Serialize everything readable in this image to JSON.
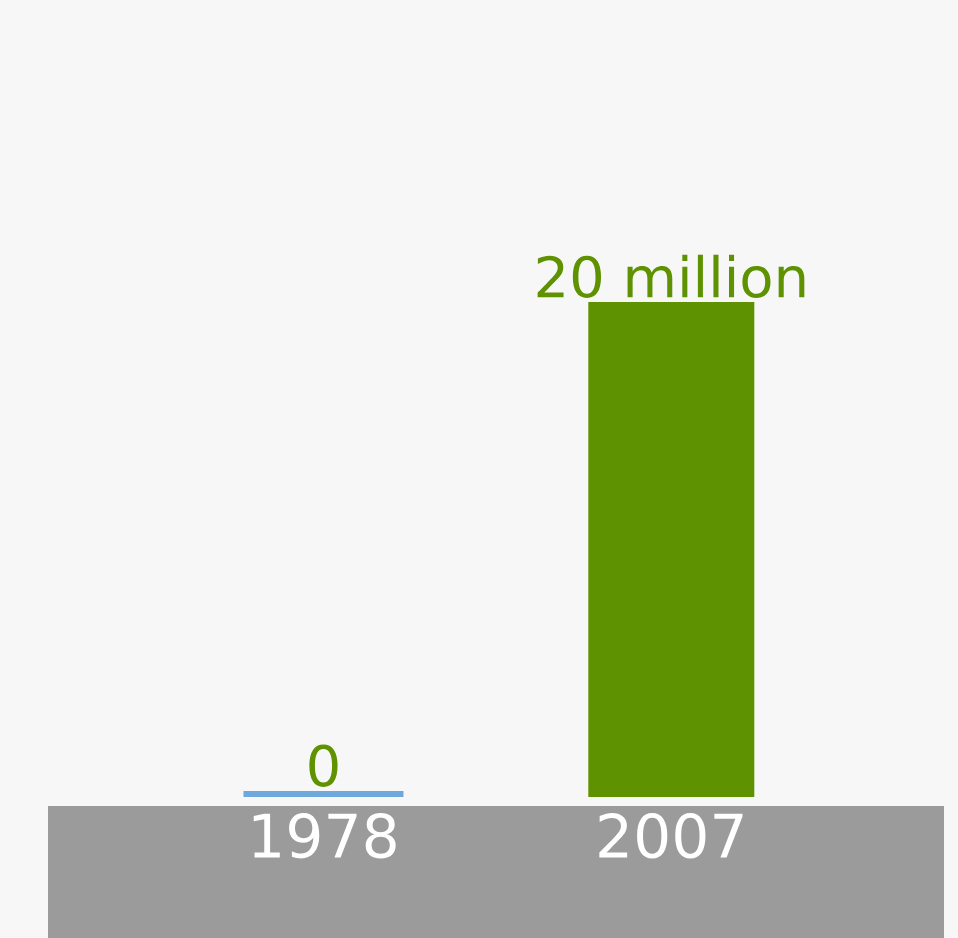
{
  "chart_data": {
    "type": "bar",
    "categories": [
      "1978",
      "2007"
    ],
    "values": [
      0,
      20
    ],
    "colors": [
      "#6fa8dc",
      "#5f9200"
    ],
    "value_labels": [
      "0",
      "20 million"
    ]
  }
}
